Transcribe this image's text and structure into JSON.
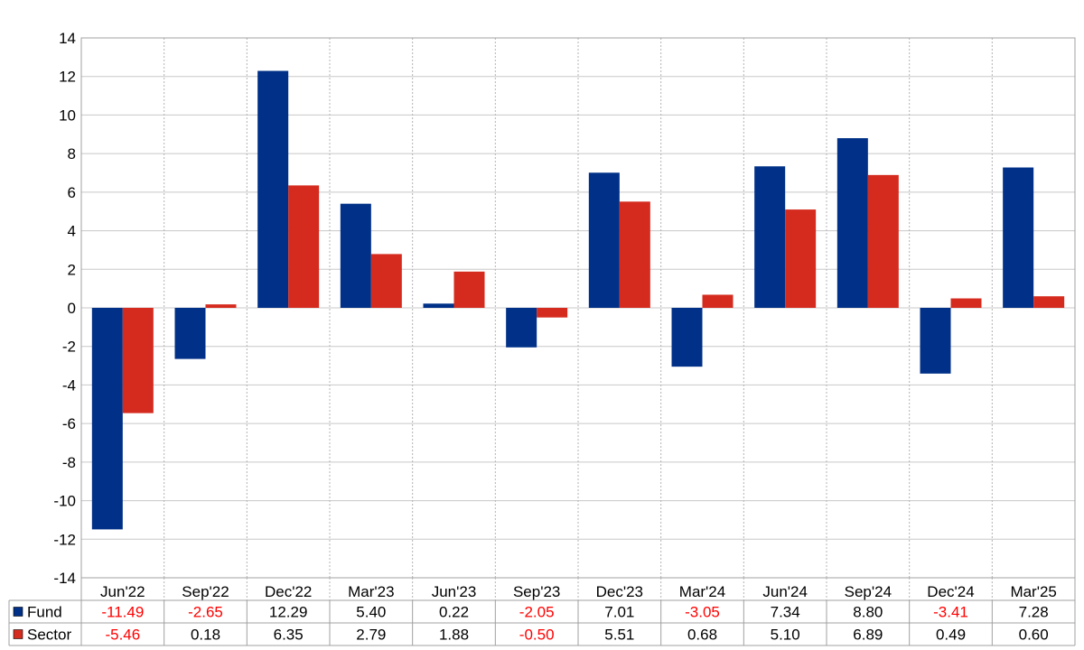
{
  "chart_data": {
    "type": "bar",
    "categories": [
      "Jun'22",
      "Sep'22",
      "Dec'22",
      "Mar'23",
      "Jun'23",
      "Sep'23",
      "Dec'23",
      "Mar'24",
      "Jun'24",
      "Sep'24",
      "Dec'24",
      "Mar'25"
    ],
    "series": [
      {
        "name": "Fund",
        "color": "#003087",
        "values": [
          -11.49,
          -2.65,
          12.29,
          5.4,
          0.22,
          -2.05,
          7.01,
          -3.05,
          7.34,
          8.8,
          -3.41,
          7.28
        ],
        "labels": [
          "-11.49",
          "-2.65",
          "12.29",
          "5.40",
          "0.22",
          "-2.05",
          "7.01",
          "-3.05",
          "7.34",
          "8.80",
          "-3.41",
          "7.28"
        ]
      },
      {
        "name": "Sector",
        "color": "#d52b1e",
        "values": [
          -5.46,
          0.18,
          6.35,
          2.79,
          1.88,
          -0.5,
          5.51,
          0.68,
          5.1,
          6.89,
          0.49,
          0.6
        ],
        "labels": [
          "-5.46",
          "0.18",
          "6.35",
          "2.79",
          "1.88",
          "-0.50",
          "5.51",
          "0.68",
          "5.10",
          "6.89",
          "0.49",
          "0.60"
        ]
      }
    ],
    "ylim": [
      -14,
      14
    ],
    "yticks": [
      "14",
      "12",
      "10",
      "8",
      "6",
      "4",
      "2",
      "0",
      "-2",
      "-4",
      "-6",
      "-8",
      "-10",
      "-12",
      "-14"
    ],
    "negative_label_color": "#ff0000",
    "grid": true,
    "legend": "data-table-below"
  }
}
